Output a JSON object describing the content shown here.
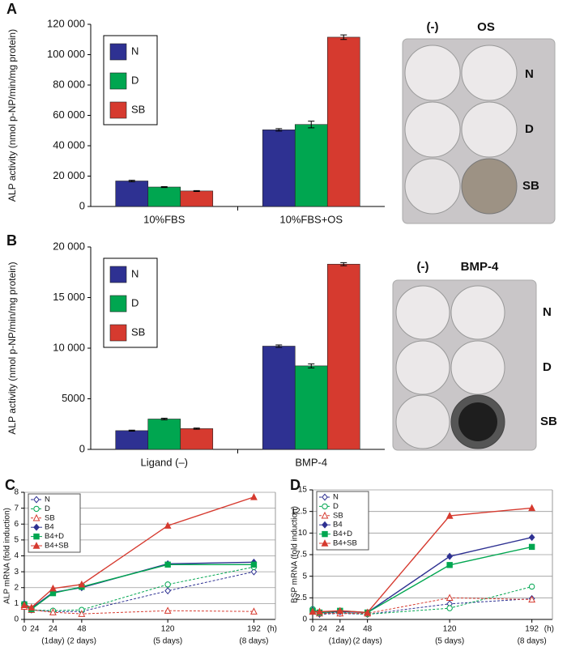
{
  "chart_data": [
    {
      "type": "bar",
      "panel_label": "A",
      "ylabel": "ALP activity (nmol p-NP/min/mg protein)",
      "categories": [
        "10%FBS",
        "10%FBS+OS"
      ],
      "series": [
        {
          "name": "N",
          "color": "#2e3192",
          "values": [
            16800,
            50500
          ],
          "errors": [
            500,
            800
          ]
        },
        {
          "name": "D",
          "color": "#00a650",
          "values": [
            12800,
            54000
          ],
          "errors": [
            300,
            2200
          ]
        },
        {
          "name": "SB",
          "color": "#d63a2f",
          "values": [
            10200,
            111500
          ],
          "errors": [
            300,
            1500
          ]
        }
      ],
      "ylim": [
        0,
        120000
      ],
      "yticks": [
        0,
        {
          "value": 20000,
          "label": "20 000"
        },
        {
          "value": 40000,
          "label": "40 000"
        },
        {
          "value": 60000,
          "label": "60 000"
        },
        {
          "value": 80000,
          "label": "80 000"
        },
        {
          "value": 100000,
          "label": "100 000"
        },
        {
          "value": 120000,
          "label": "120 000"
        }
      ],
      "grid": false
    },
    {
      "type": "bar",
      "panel_label": "B",
      "ylabel": "ALP activity (nmol p-NP/min/mg protein)",
      "categories": [
        "Ligand (–)",
        "BMP-4"
      ],
      "series": [
        {
          "name": "N",
          "color": "#2e3192",
          "values": [
            1850,
            10200
          ],
          "errors": [
            50,
            120
          ]
        },
        {
          "name": "D",
          "color": "#00a650",
          "values": [
            3000,
            8250
          ],
          "errors": [
            80,
            200
          ]
        },
        {
          "name": "SB",
          "color": "#d63a2f",
          "values": [
            2050,
            18300
          ],
          "errors": [
            60,
            150
          ]
        }
      ],
      "ylim": [
        0,
        20000
      ],
      "yticks": [
        0,
        5000,
        {
          "value": 10000,
          "label": "10 000"
        },
        {
          "value": 15000,
          "label": "15 000"
        },
        {
          "value": 20000,
          "label": "20 000"
        }
      ],
      "grid": false
    },
    {
      "type": "line",
      "panel_label": "C",
      "ylabel": "ALP mRNA (fold induction)",
      "x": [
        0,
        6,
        24,
        48,
        120,
        192
      ],
      "xlim": [
        0,
        210
      ],
      "xticks": [
        0,
        24,
        48,
        120,
        192
      ],
      "extra_tick_label": "24",
      "xunit": "(h)",
      "xtick_sublabels": [
        "(1day)",
        "(2 days)",
        "(5 days)",
        "(8 days)"
      ],
      "series": [
        {
          "name": "N",
          "color": "#2e3192",
          "marker": "diamond",
          "filled": false,
          "dashed": true,
          "values": [
            1,
            0.6,
            0.5,
            0.5,
            1.8,
            3.0
          ]
        },
        {
          "name": "D",
          "color": "#00a650",
          "marker": "circle",
          "filled": false,
          "dashed": true,
          "values": [
            0.9,
            0.6,
            0.55,
            0.6,
            2.2,
            3.3
          ]
        },
        {
          "name": "SB",
          "color": "#d63a2f",
          "marker": "triangle",
          "filled": false,
          "dashed": true,
          "values": [
            0.8,
            0.6,
            0.45,
            0.35,
            0.55,
            0.5
          ]
        },
        {
          "name": "B4",
          "color": "#2e3192",
          "marker": "diamond",
          "filled": true,
          "dashed": false,
          "values": [
            1,
            0.7,
            1.7,
            2.0,
            3.5,
            3.6
          ]
        },
        {
          "name": "B4+D",
          "color": "#00a650",
          "marker": "square",
          "filled": true,
          "dashed": false,
          "values": [
            0.95,
            0.65,
            1.65,
            2.05,
            3.45,
            3.45
          ]
        },
        {
          "name": "B4+SB",
          "color": "#d63a2f",
          "marker": "triangle",
          "filled": true,
          "dashed": false,
          "values": [
            0.9,
            0.75,
            1.95,
            2.2,
            5.9,
            7.7
          ]
        }
      ],
      "ylim": [
        0,
        8
      ],
      "yticks": [
        0,
        1,
        2,
        3,
        4,
        5,
        6,
        7,
        8
      ],
      "grid": true
    },
    {
      "type": "line",
      "panel_label": "D",
      "ylabel": "BSP mRNA (fold induction)",
      "x": [
        0,
        6,
        24,
        48,
        120,
        192
      ],
      "xlim": [
        0,
        210
      ],
      "xticks": [
        0,
        24,
        48,
        120,
        192
      ],
      "extra_tick_label": "24",
      "xunit": "(h)",
      "xtick_sublabels": [
        "(1day)",
        "(2 days)",
        "(5 days)",
        "(8 days)"
      ],
      "series": [
        {
          "name": "N",
          "color": "#2e3192",
          "marker": "diamond",
          "filled": false,
          "dashed": true,
          "values": [
            1,
            0.6,
            0.7,
            0.6,
            1.8,
            2.4
          ]
        },
        {
          "name": "D",
          "color": "#00a650",
          "marker": "circle",
          "filled": false,
          "dashed": true,
          "values": [
            1.2,
            0.7,
            0.8,
            0.6,
            1.3,
            3.8
          ]
        },
        {
          "name": "SB",
          "color": "#d63a2f",
          "marker": "triangle",
          "filled": false,
          "dashed": true,
          "values": [
            0.9,
            0.7,
            0.7,
            0.7,
            2.5,
            2.3
          ]
        },
        {
          "name": "B4",
          "color": "#2e3192",
          "marker": "diamond",
          "filled": true,
          "dashed": false,
          "values": [
            1.1,
            0.8,
            0.9,
            0.8,
            7.3,
            9.5
          ]
        },
        {
          "name": "B4+D",
          "color": "#00a650",
          "marker": "square",
          "filled": true,
          "dashed": false,
          "values": [
            1.0,
            0.8,
            1.0,
            0.8,
            6.3,
            8.4
          ]
        },
        {
          "name": "B4+SB",
          "color": "#d63a2f",
          "marker": "triangle",
          "filled": true,
          "dashed": false,
          "values": [
            0.9,
            0.9,
            1.0,
            0.8,
            12.0,
            12.9
          ]
        }
      ],
      "ylim": [
        0,
        15
      ],
      "yticks": [
        0,
        2.5,
        5,
        7.5,
        10,
        12.5,
        15
      ],
      "grid": true
    }
  ],
  "plates": [
    {
      "columns": [
        "(-)",
        "OS"
      ],
      "rows": [
        "N",
        "D",
        "SB"
      ]
    },
    {
      "columns": [
        "(-)",
        "BMP-4"
      ],
      "rows": [
        "N",
        "D",
        "SB"
      ]
    }
  ]
}
